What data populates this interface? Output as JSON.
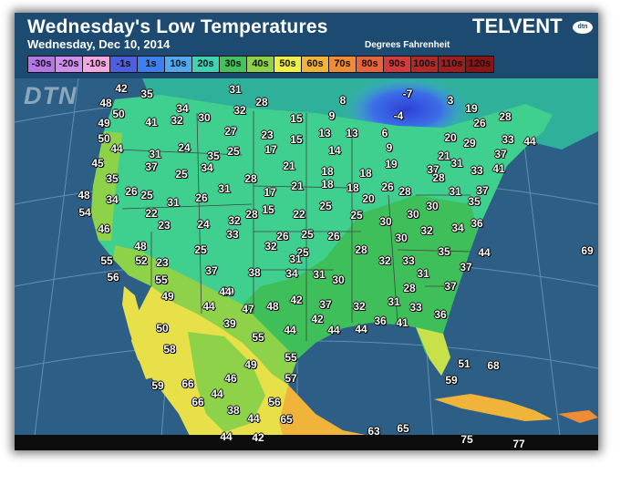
{
  "header": {
    "title": "Wednesday's Low Temperatures",
    "subtitle": "Wednesday, Dec 10, 2014",
    "units": "Degrees Fahrenheit",
    "brand": "TELVENT",
    "brand_badge": "dtn"
  },
  "watermark": "DTN",
  "legend": [
    {
      "label": "-30s",
      "color": "#b478e6"
    },
    {
      "label": "-20s",
      "color": "#d08ff0"
    },
    {
      "label": "-10s",
      "color": "#f4a8e2"
    },
    {
      "label": "-1s",
      "color": "#4d5fe0"
    },
    {
      "label": "1s",
      "color": "#3c7ff0"
    },
    {
      "label": "10s",
      "color": "#4fa8f0"
    },
    {
      "label": "20s",
      "color": "#3fd2b5"
    },
    {
      "label": "30s",
      "color": "#46c25c"
    },
    {
      "label": "40s",
      "color": "#8ed24a"
    },
    {
      "label": "50s",
      "color": "#f0ee48"
    },
    {
      "label": "60s",
      "color": "#f0b43a"
    },
    {
      "label": "70s",
      "color": "#f08c34"
    },
    {
      "label": "80s",
      "color": "#e8643a"
    },
    {
      "label": "90s",
      "color": "#d23c3c"
    },
    {
      "label": "100s",
      "color": "#b42828"
    },
    {
      "label": "110s",
      "color": "#a01e1e"
    },
    {
      "label": "120s",
      "color": "#8c1414"
    }
  ],
  "temperatures": [
    "42",
    "35",
    "31",
    "48",
    "50",
    "34",
    "32",
    "28",
    "8",
    "-7",
    "3",
    "19",
    "28",
    "49",
    "41",
    "32",
    "30",
    "15",
    "9",
    "-4",
    "26",
    "50",
    "27",
    "23",
    "15",
    "13",
    "13",
    "6",
    "20",
    "33",
    "44",
    "44",
    "31",
    "24",
    "35",
    "25",
    "17",
    "14",
    "9",
    "21",
    "29",
    "37",
    "45",
    "37",
    "34",
    "21",
    "18",
    "19",
    "37",
    "28",
    "31",
    "33",
    "41",
    "35",
    "26",
    "25",
    "25",
    "28",
    "18",
    "18",
    "48",
    "31",
    "26",
    "31",
    "17",
    "21",
    "18",
    "20",
    "26",
    "28",
    "31",
    "37",
    "34",
    "22",
    "28",
    "35",
    "54",
    "15",
    "22",
    "25",
    "25",
    "30",
    "30",
    "30",
    "46",
    "23",
    "24",
    "32",
    "34",
    "36",
    "33",
    "26",
    "25",
    "26",
    "30",
    "48",
    "32",
    "32",
    "55",
    "52",
    "25",
    "25",
    "28",
    "35",
    "44",
    "69",
    "23",
    "31",
    "32",
    "33",
    "37",
    "56",
    "35",
    "38",
    "34",
    "31",
    "30",
    "31",
    "55",
    "37",
    "44",
    "39",
    "28",
    "37",
    "49",
    "47",
    "48",
    "42",
    "37",
    "32",
    "31",
    "33",
    "44",
    "36",
    "42",
    "36",
    "41",
    "36",
    "50",
    "39",
    "44",
    "44",
    "55",
    "44",
    "58",
    "55",
    "49",
    "51",
    "68",
    "57",
    "59",
    "46",
    "59",
    "66",
    "44",
    "56",
    "66",
    "38",
    "65",
    "44",
    "63",
    "65",
    "44",
    "42",
    "75",
    "77"
  ]
}
